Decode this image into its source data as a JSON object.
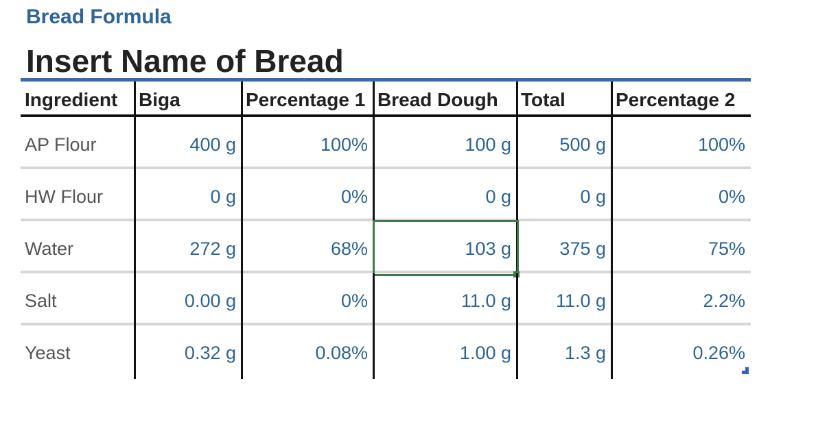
{
  "header": {
    "subtitle": "Bread Formula",
    "title": "Insert Name of Bread"
  },
  "table": {
    "columns": [
      "Ingredient",
      "Biga",
      "Percentage 1",
      "Bread Dough",
      "Total",
      "Percentage 2"
    ],
    "rows": [
      {
        "ingredient": "AP Flour",
        "biga": "400 g",
        "percentage1": "100%",
        "bread_dough": "100 g",
        "total": "500 g",
        "percentage2": "100%"
      },
      {
        "ingredient": "HW Flour",
        "biga": "0 g",
        "percentage1": "0%",
        "bread_dough": "0 g",
        "total": "0 g",
        "percentage2": "0%"
      },
      {
        "ingredient": "Water",
        "biga": "272 g",
        "percentage1": "68%",
        "bread_dough": "103 g",
        "total": "375 g",
        "percentage2": "75%"
      },
      {
        "ingredient": "Salt",
        "biga": "0.00 g",
        "percentage1": "0%",
        "bread_dough": "11.0 g",
        "total": "11.0 g",
        "percentage2": "2.2%"
      },
      {
        "ingredient": "Yeast",
        "biga": "0.32 g",
        "percentage1": "0.08%",
        "bread_dough": "1.00 g",
        "total": "1.3 g",
        "percentage2": "0.26%"
      }
    ],
    "selected_cell": {
      "row": "Water",
      "column": "Bread Dough"
    }
  },
  "colors": {
    "heading_blue": "#2e6496",
    "title_text": "#222222",
    "top_rule": "#3a68a8",
    "value_text": "#2e6496",
    "label_text": "#555555",
    "selection_border": "#3d7a4a",
    "row_divider": "#d6d6d6"
  }
}
